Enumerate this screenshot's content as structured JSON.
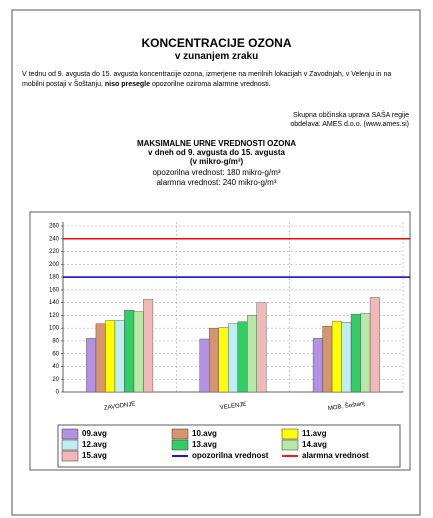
{
  "header": {
    "title": "KONCENTRACIJE OZONA",
    "subtitle": "v zunanjem zraku"
  },
  "intro": [
    "V tednu od 9. avgusta do 15. avgusta koncentracije ozona, izmerjene na merilnih lokacijah v Zavodnjah, v Velenju in na mobilni postaji v Šoštanju, ",
    "niso presegle",
    " opozorilne oziroma alarmne vrednosti."
  ],
  "signature": [
    "Skupna občinska uprava SAŠA regije",
    "obdelava: AMES d.o.o. (www.ames.si)"
  ],
  "chart_data": {
    "type": "bar",
    "title": [
      "MAKSIMALNE URNE VREDNOSTI OZONA",
      "v dneh od 9. avgusta do 15. avgusta",
      "(v mikro-g/m³)"
    ],
    "subtitle": [
      "opozorilna vrednost: 180 mikro-g/m³",
      "alarmna vrednost: 240 mikro-g/m³"
    ],
    "categories": [
      "ZAVODNJE",
      "VELENJE",
      "MOB. Šoštanj"
    ],
    "series": [
      {
        "name": "09.avg",
        "color": "#b591e3",
        "values": [
          84,
          83,
          84
        ]
      },
      {
        "name": "10.avg",
        "color": "#d4956f",
        "values": [
          107,
          100,
          103
        ]
      },
      {
        "name": "11.avg",
        "color": "#ffff00",
        "values": [
          112,
          101,
          111
        ]
      },
      {
        "name": "12.avg",
        "color": "#bfeef2",
        "values": [
          112,
          107,
          109
        ]
      },
      {
        "name": "13.avg",
        "color": "#33cc66",
        "values": [
          128,
          110,
          122
        ]
      },
      {
        "name": "14.avg",
        "color": "#b6e8a6",
        "values": [
          126,
          120,
          123
        ]
      },
      {
        "name": "15.avg",
        "color": "#f2b8b8",
        "values": [
          145,
          140,
          148
        ]
      }
    ],
    "reference_lines": [
      {
        "name": "opozorilna vrednost",
        "color": "#0000cc",
        "value": 180
      },
      {
        "name": "alarmna vrednost",
        "color": "#ff0000",
        "value": 240
      }
    ],
    "ylim": [
      0,
      260
    ],
    "yticks": [
      0,
      20,
      40,
      60,
      80,
      100,
      120,
      140,
      160,
      180,
      200,
      220,
      240,
      260
    ],
    "grid": true
  }
}
